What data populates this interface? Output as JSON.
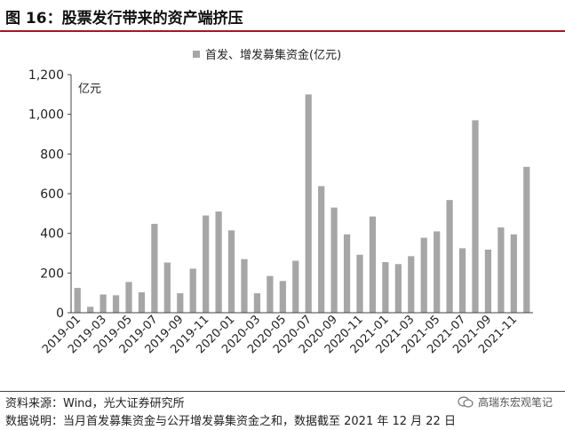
{
  "figure": {
    "title": "图 16：股票发行带来的资产端挤压"
  },
  "chart_data": {
    "type": "bar",
    "unit_label": "亿元",
    "ylim": [
      0,
      1200
    ],
    "yticks": [
      0,
      200,
      400,
      600,
      800,
      1000,
      1200
    ],
    "ytick_labels": [
      "0",
      "200",
      "400",
      "600",
      "800",
      "1,000",
      "1,200"
    ],
    "grid": false,
    "legend_position": "top-center",
    "categories": [
      "2019-01",
      "2019-02",
      "2019-03",
      "2019-04",
      "2019-05",
      "2019-06",
      "2019-07",
      "2019-08",
      "2019-09",
      "2019-10",
      "2019-11",
      "2019-12",
      "2020-01",
      "2020-02",
      "2020-03",
      "2020-04",
      "2020-05",
      "2020-06",
      "2020-07",
      "2020-08",
      "2020-09",
      "2020-10",
      "2020-11",
      "2020-12",
      "2021-01",
      "2021-02",
      "2021-03",
      "2021-04",
      "2021-05",
      "2021-06",
      "2021-07",
      "2021-08",
      "2021-09",
      "2021-10",
      "2021-11",
      "2021-12"
    ],
    "xtick_labels": [
      "2019-01",
      "2019-03",
      "2019-05",
      "2019-07",
      "2019-09",
      "2019-11",
      "2020-01",
      "2020-03",
      "2020-05",
      "2020-07",
      "2020-09",
      "2020-11",
      "2021-01",
      "2021-03",
      "2021-05",
      "2021-07",
      "2021-09",
      "2021-11"
    ],
    "series": [
      {
        "name": "首发、增发募集资金(亿元)",
        "color": "#a6a6a6",
        "values": [
          125,
          30,
          92,
          88,
          155,
          103,
          448,
          253,
          98,
          222,
          490,
          510,
          415,
          270,
          98,
          185,
          160,
          262,
          1100,
          638,
          530,
          395,
          292,
          485,
          255,
          245,
          285,
          378,
          410,
          568,
          325,
          970,
          318,
          430,
          395,
          735
        ]
      }
    ]
  },
  "footer": {
    "source": "资料来源：Wind，光大证券研究所",
    "note": "数据说明：当月首发募集资金与公开增发募集资金之和，数据截至 2021 年 12 月 22 日",
    "watermark": "高瑞东宏观笔记"
  }
}
